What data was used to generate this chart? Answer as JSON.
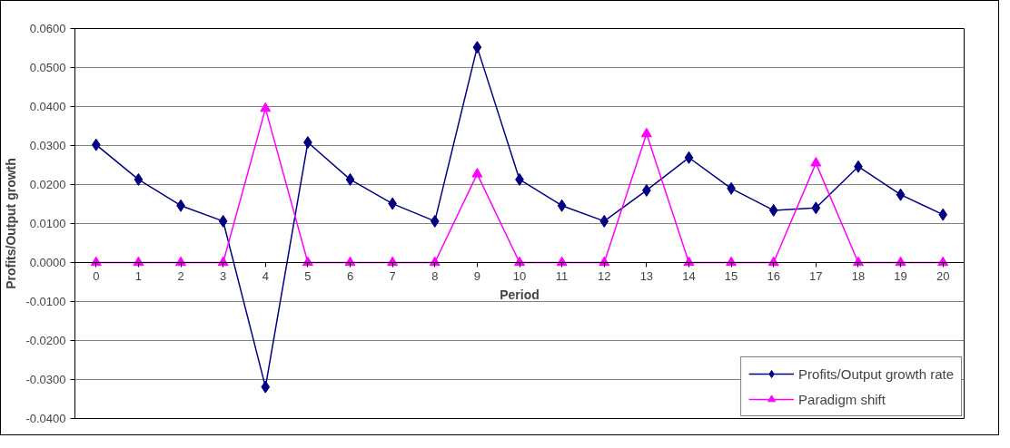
{
  "chart_data": {
    "type": "line",
    "xlabel": "Period",
    "ylabel": "Profits/Output growth",
    "x": [
      0,
      1,
      2,
      3,
      4,
      5,
      6,
      7,
      8,
      9,
      10,
      11,
      12,
      13,
      14,
      15,
      16,
      17,
      18,
      19,
      20
    ],
    "xlim": [
      -0.5,
      20.5
    ],
    "xticks": [
      0,
      1,
      2,
      3,
      4,
      5,
      6,
      7,
      8,
      9,
      10,
      11,
      12,
      13,
      14,
      15,
      16,
      17,
      18,
      19,
      20
    ],
    "ylim": [
      -0.04,
      0.06
    ],
    "yticks": [
      {
        "value": -0.04,
        "label": "-0.0400"
      },
      {
        "value": -0.03,
        "label": "-0.0300"
      },
      {
        "value": -0.02,
        "label": "-0.0200"
      },
      {
        "value": -0.01,
        "label": "-0.0100"
      },
      {
        "value": 0,
        "label": "0.0000"
      },
      {
        "value": 0.01,
        "label": "0.0100"
      },
      {
        "value": 0.02,
        "label": "0.0200"
      },
      {
        "value": 0.03,
        "label": "0.0300"
      },
      {
        "value": 0.04,
        "label": "0.0400"
      },
      {
        "value": 0.05,
        "label": "0.0500"
      },
      {
        "value": 0.06,
        "label": "0.0600"
      }
    ],
    "grid": "y",
    "legend": "bottom right",
    "line_style": "solid",
    "series": [
      {
        "name": "Profits/Output growth rate",
        "color": "#000080",
        "marker": "diamond",
        "values": [
          0.0302,
          0.0213,
          0.0146,
          0.0106,
          -0.0319,
          0.0308,
          0.0213,
          0.0151,
          0.0106,
          0.0552,
          0.0213,
          0.0146,
          0.0106,
          0.0185,
          0.0269,
          0.019,
          0.0134,
          0.014,
          0.0246,
          0.0174,
          0.0123
        ]
      },
      {
        "name": "Paradigm shift",
        "color": "#ff00ff",
        "marker": "triangle",
        "values": [
          0,
          0,
          0,
          0,
          0.0395,
          0,
          0,
          0,
          0,
          0.0227,
          0,
          0,
          0,
          0.033,
          0,
          0,
          0,
          0.0255,
          0,
          0,
          0
        ]
      }
    ]
  }
}
